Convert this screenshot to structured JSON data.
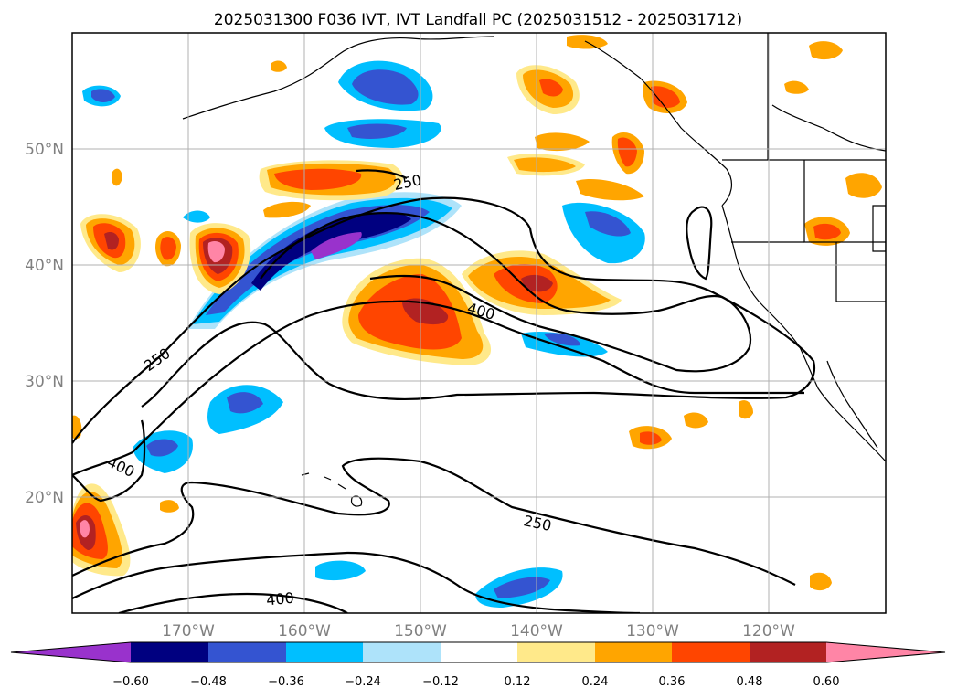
{
  "title": "2025031300 F036 IVT, IVT Landfall PC (2025031512 - 2025031712)",
  "map": {
    "lat_labels": [
      "50°N",
      "40°N",
      "30°N",
      "20°N"
    ],
    "lon_labels": [
      "170°W",
      "160°W",
      "150°W",
      "140°W",
      "130°W",
      "120°W"
    ],
    "contour_labels": [
      "250",
      "400",
      "250",
      "400",
      "250",
      "400"
    ],
    "colors": {
      "neg_strong": "#000080",
      "neg_mid": "#3454d1",
      "neg_light": "#00bfff",
      "neg_faint": "#aee3fa",
      "pos_faint": "#ffe98a",
      "pos_light": "#ffa500",
      "pos_mid": "#ff4500",
      "pos_strong": "#b22222",
      "pos_max": "#ff85a6",
      "neg_max": "#9932cc"
    }
  },
  "colorbar": {
    "bin_colors": [
      "#9932cc",
      "#000080",
      "#3454d1",
      "#00bfff",
      "#aee3fa",
      "#ffffff",
      "#ffe98a",
      "#ffa500",
      "#ff4500",
      "#b22222",
      "#ff85a6"
    ],
    "ticks": [
      "−0.60",
      "−0.48",
      "−0.36",
      "−0.24",
      "−0.12",
      "0.12",
      "0.24",
      "0.36",
      "0.48",
      "0.60"
    ]
  }
}
